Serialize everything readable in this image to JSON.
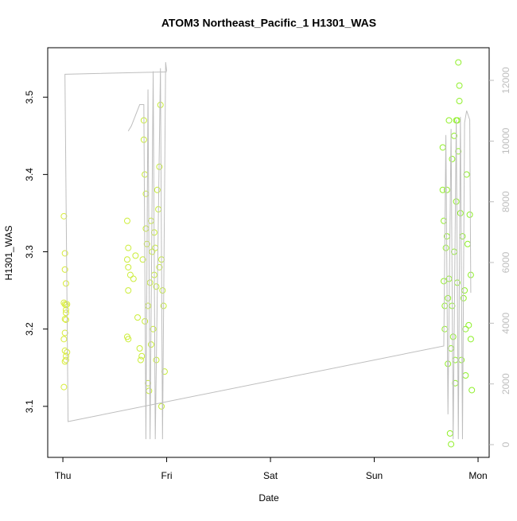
{
  "chart_data": {
    "type": "scatter",
    "title": "ATOM3 Northeast_Pacific_1 H1301_WAS",
    "x_label": "Date",
    "y_label": "H1301_WAS",
    "xlim": [
      -0.146,
      4.107
    ],
    "xticks": [
      {
        "value": 0,
        "label": "Thu"
      },
      {
        "value": 1,
        "label": "Fri"
      },
      {
        "value": 2,
        "label": "Sat"
      },
      {
        "value": 3,
        "label": "Sun"
      },
      {
        "value": 4,
        "label": "Mon"
      }
    ],
    "ylim": [
      3.034,
      3.564
    ],
    "yticks": [
      3.1,
      3.2,
      3.3,
      3.4,
      3.5
    ],
    "y2lim": [
      -419,
      13075
    ],
    "y2ticks": [
      0,
      2000,
      4000,
      6000,
      8000,
      10000,
      12000
    ],
    "point_color_gradient": [
      "#d8ec3c",
      "#8ef02a"
    ],
    "series": [
      {
        "x": [
          0.01,
          0.02,
          0.02,
          0.03,
          0.01,
          0.02,
          0.03,
          0.03,
          0.02,
          0.03,
          0.02,
          0.01,
          0.02,
          0.03,
          0.02,
          0.01,
          0.04,
          0.03,
          0.04,
          0.03,
          0.62,
          0.62,
          0.63,
          0.63,
          0.63,
          0.62,
          0.63,
          0.65,
          0.68,
          0.7,
          0.72,
          0.74,
          0.75,
          0.77,
          0.78,
          0.78,
          0.79,
          0.8,
          0.8,
          0.81,
          0.82,
          0.82,
          0.83,
          0.84,
          0.85,
          0.86,
          0.87,
          0.88,
          0.89,
          0.9,
          0.91,
          0.92,
          0.93,
          0.94,
          0.95,
          0.96,
          0.97,
          0.98,
          0.95,
          0.9,
          0.85,
          0.79,
          0.76,
          0.88,
          0.93,
          3.66,
          3.66,
          3.67,
          3.67,
          3.68,
          3.68,
          3.69,
          3.7,
          3.7,
          3.71,
          3.71,
          3.72,
          3.72,
          3.73,
          3.74,
          3.74,
          3.75,
          3.75,
          3.76,
          3.77,
          3.77,
          3.78,
          3.79,
          3.79,
          3.8,
          3.81,
          3.81,
          3.82,
          3.82,
          3.83,
          3.84,
          3.85,
          3.86,
          3.87,
          3.88,
          3.89,
          3.9,
          3.91,
          3.92,
          3.93,
          3.94,
          3.93,
          3.88,
          3.8,
          3.78
        ],
        "values": [
          3.346,
          3.298,
          3.277,
          3.259,
          3.234,
          3.232,
          3.231,
          3.225,
          3.213,
          3.212,
          3.195,
          3.187,
          3.172,
          3.165,
          3.158,
          3.125,
          3.232,
          3.221,
          3.17,
          3.16,
          3.34,
          3.29,
          3.305,
          3.28,
          3.25,
          3.19,
          3.187,
          3.27,
          3.265,
          3.295,
          3.215,
          3.175,
          3.16,
          3.29,
          3.47,
          3.445,
          3.4,
          3.375,
          3.33,
          3.31,
          3.23,
          3.13,
          3.12,
          3.26,
          3.34,
          3.3,
          3.2,
          3.27,
          3.305,
          3.255,
          3.38,
          3.355,
          3.41,
          3.49,
          3.29,
          3.25,
          3.23,
          3.145,
          3.1,
          3.16,
          3.18,
          3.21,
          3.165,
          3.325,
          3.28,
          3.435,
          3.38,
          3.34,
          3.262,
          3.23,
          3.2,
          3.305,
          3.38,
          3.32,
          3.24,
          3.155,
          3.47,
          3.265,
          3.065,
          3.051,
          3.175,
          3.42,
          3.23,
          3.19,
          3.45,
          3.3,
          3.13,
          3.47,
          3.365,
          3.26,
          3.545,
          3.43,
          3.515,
          3.495,
          3.35,
          3.16,
          3.32,
          3.24,
          3.25,
          3.2,
          3.4,
          3.31,
          3.205,
          3.348,
          3.187,
          3.121,
          3.27,
          3.14,
          3.47,
          3.16
        ]
      },
      {
        "axis": "y2",
        "color": "#bebebe",
        "x": [
          0.63,
          0.66,
          0.74,
          0.78,
          0.8,
          0.82,
          0.84,
          0.87,
          0.89,
          0.94,
          0.96,
          0.99,
          1.0,
          null,
          1.0,
          0.02,
          0.05,
          3.67,
          3.69,
          3.71,
          3.74,
          3.76,
          3.79,
          3.81,
          3.83,
          3.85,
          3.87,
          3.89,
          3.92,
          3.93
        ],
        "values": [
          10330,
          10500,
          11200,
          11200,
          180,
          11700,
          180,
          12300,
          180,
          12400,
          180,
          12600,
          12300,
          null,
          12280,
          12200,
          760,
          3250,
          10200,
          1000,
          10400,
          180,
          10700,
          180,
          10800,
          180,
          10600,
          11000,
          10700,
          5000
        ]
      }
    ]
  }
}
